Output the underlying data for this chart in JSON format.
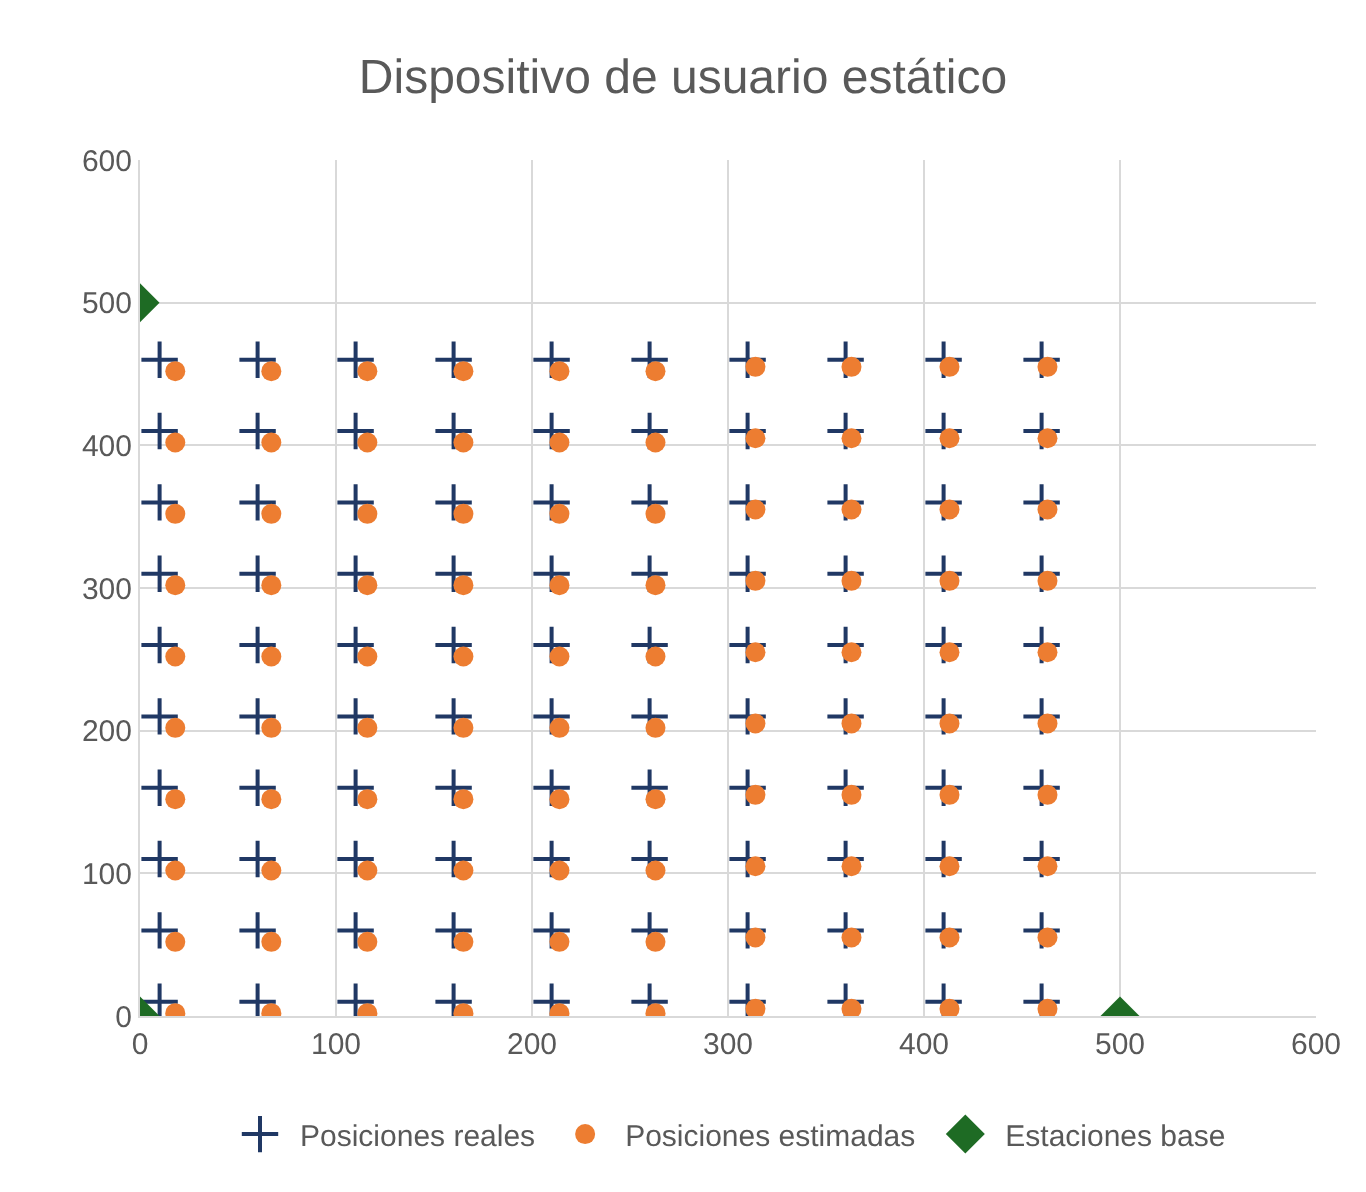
{
  "chart_data": {
    "type": "scatter",
    "title": "Dispositivo de usuario estático",
    "xlim": [
      0,
      600
    ],
    "ylim": [
      0,
      600
    ],
    "xticks": [
      0,
      100,
      200,
      300,
      400,
      500,
      600
    ],
    "yticks": [
      0,
      100,
      200,
      300,
      400,
      500,
      600
    ],
    "grid": true,
    "legend": "bottom",
    "series": [
      {
        "name": "Posiciones reales",
        "color": "#203864",
        "marker": "cross",
        "x": [
          10,
          10,
          10,
          10,
          10,
          10,
          10,
          10,
          10,
          10,
          60,
          60,
          60,
          60,
          60,
          60,
          60,
          60,
          60,
          60,
          110,
          110,
          110,
          110,
          110,
          110,
          110,
          110,
          110,
          110,
          160,
          160,
          160,
          160,
          160,
          160,
          160,
          160,
          160,
          160,
          210,
          210,
          210,
          210,
          210,
          210,
          210,
          210,
          210,
          210,
          260,
          260,
          260,
          260,
          260,
          260,
          260,
          260,
          260,
          260,
          310,
          310,
          310,
          310,
          310,
          310,
          310,
          310,
          310,
          310,
          360,
          360,
          360,
          360,
          360,
          360,
          360,
          360,
          360,
          360,
          410,
          410,
          410,
          410,
          410,
          410,
          410,
          410,
          410,
          410,
          460,
          460,
          460,
          460,
          460,
          460,
          460,
          460,
          460,
          460
        ],
        "values": [
          10,
          60,
          110,
          160,
          210,
          260,
          310,
          360,
          410,
          460,
          10,
          60,
          110,
          160,
          210,
          260,
          310,
          360,
          410,
          460,
          10,
          60,
          110,
          160,
          210,
          260,
          310,
          360,
          410,
          460,
          10,
          60,
          110,
          160,
          210,
          260,
          310,
          360,
          410,
          460,
          10,
          60,
          110,
          160,
          210,
          260,
          310,
          360,
          410,
          460,
          10,
          60,
          110,
          160,
          210,
          260,
          310,
          360,
          410,
          460,
          10,
          60,
          110,
          160,
          210,
          260,
          310,
          360,
          410,
          460,
          10,
          60,
          110,
          160,
          210,
          260,
          310,
          360,
          410,
          460,
          10,
          60,
          110,
          160,
          210,
          260,
          310,
          360,
          410,
          460,
          10,
          60,
          110,
          160,
          210,
          260,
          310,
          360,
          410,
          460
        ]
      },
      {
        "name": "Posiciones estimadas",
        "color": "#ed7d31",
        "marker": "circle",
        "x": [
          18,
          18,
          18,
          18,
          18,
          18,
          18,
          18,
          18,
          18,
          67,
          67,
          67,
          67,
          67,
          67,
          67,
          67,
          67,
          67,
          116,
          116,
          116,
          116,
          116,
          116,
          116,
          116,
          116,
          116,
          165,
          165,
          165,
          165,
          165,
          165,
          165,
          165,
          165,
          165,
          214,
          214,
          214,
          214,
          214,
          214,
          214,
          214,
          214,
          214,
          263,
          263,
          263,
          263,
          263,
          263,
          263,
          263,
          263,
          263,
          314,
          314,
          314,
          314,
          314,
          314,
          314,
          314,
          314,
          314,
          363,
          363,
          363,
          363,
          363,
          363,
          363,
          363,
          363,
          363,
          413,
          413,
          413,
          413,
          413,
          413,
          413,
          413,
          413,
          413,
          463,
          463,
          463,
          463,
          463,
          463,
          463,
          463,
          463,
          463
        ],
        "values": [
          2,
          52,
          102,
          152,
          202,
          252,
          302,
          352,
          402,
          452,
          2,
          52,
          102,
          152,
          202,
          252,
          302,
          352,
          402,
          452,
          2,
          52,
          102,
          152,
          202,
          252,
          302,
          352,
          402,
          452,
          2,
          52,
          102,
          152,
          202,
          252,
          302,
          352,
          402,
          452,
          2,
          52,
          102,
          152,
          202,
          252,
          302,
          352,
          402,
          452,
          2,
          52,
          102,
          152,
          202,
          252,
          302,
          352,
          402,
          452,
          5,
          55,
          105,
          155,
          205,
          255,
          305,
          355,
          405,
          455,
          5,
          55,
          105,
          155,
          205,
          255,
          305,
          355,
          405,
          455,
          5,
          55,
          105,
          155,
          205,
          255,
          305,
          355,
          405,
          455,
          5,
          55,
          105,
          155,
          205,
          255,
          305,
          355,
          405,
          455
        ]
      },
      {
        "name": "Estaciones base",
        "color": "#1e6b24",
        "marker": "diamond",
        "x": [
          0,
          0,
          500
        ],
        "values": [
          0,
          500,
          0
        ]
      }
    ]
  }
}
